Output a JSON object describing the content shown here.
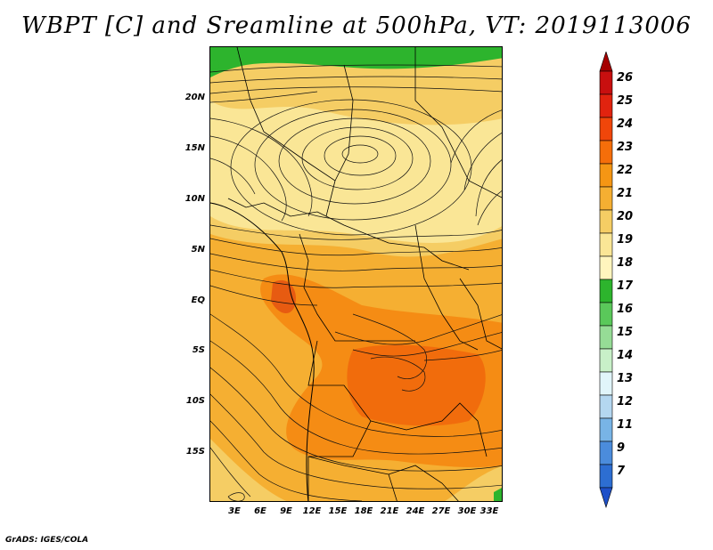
{
  "title": "WBPT [C] and Sreamline at 500hPa, VT: 2019113006",
  "credit": "GrADS: IGES/COLA",
  "map": {
    "lat_labels": [
      "20N",
      "15N",
      "10N",
      "5N",
      "EQ",
      "5S",
      "10S",
      "15S"
    ],
    "lon_labels": [
      "3E",
      "6E",
      "9E",
      "12E",
      "15E",
      "18E",
      "21E",
      "24E",
      "27E",
      "30E",
      "33E"
    ]
  },
  "legend": {
    "labels": [
      "26",
      "25",
      "24",
      "23",
      "22",
      "21",
      "20",
      "19",
      "18",
      "17",
      "16",
      "15",
      "14",
      "13",
      "12",
      "11",
      "9",
      "7"
    ],
    "colors": [
      "#a50000",
      "#c80f0f",
      "#e1230f",
      "#f0460a",
      "#f56e0a",
      "#f59614",
      "#f5af32",
      "#f5cd64",
      "#fae696",
      "#fff5be",
      "#2db42d",
      "#5ac85a",
      "#96dc96",
      "#c8f0c8",
      "#e1f5fa",
      "#b4d7f0",
      "#78b4e6",
      "#4b8cdc",
      "#2d6ed2",
      "#1e50c8"
    ]
  }
}
